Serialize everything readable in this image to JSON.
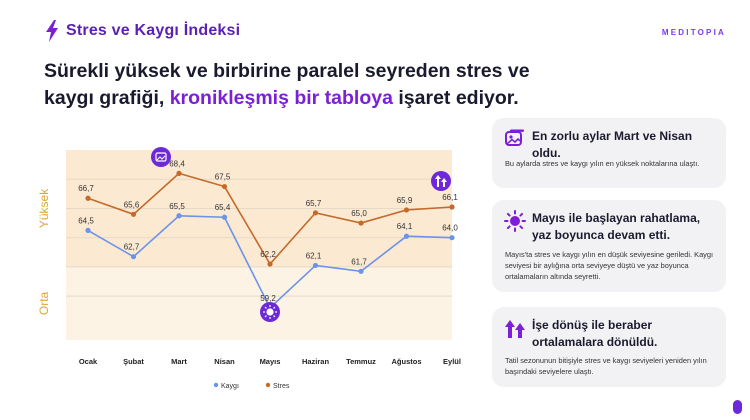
{
  "header": {
    "title": "Stres ve Kaygı İndeksi",
    "logo": "MEDITOPIA"
  },
  "headline": {
    "part1": "Sürekli yüksek ve birbirine paralel seyreden stres ve kaygı grafiği, ",
    "highlight": "kronikleşmiş bir tabloya",
    "part2": " işaret ediyor."
  },
  "colors": {
    "accent": "#7c1fd6",
    "kaygi": "#6b93e8",
    "stres": "#c46a2a",
    "band_high": "#fbe9d2",
    "band_mid": "#fdf3e4"
  },
  "chart_data": {
    "type": "line",
    "categories": [
      "Ocak",
      "Şubat",
      "Mart",
      "Nisan",
      "Mayıs",
      "Haziran",
      "Temmuz",
      "Ağustos",
      "Eylül"
    ],
    "series": [
      {
        "name": "Kaygı",
        "values": [
          64.5,
          62.7,
          65.5,
          65.4,
          59.2,
          62.1,
          61.7,
          64.1,
          64.0
        ],
        "labels": [
          "64,5",
          "62,7",
          "65,5",
          "65,4",
          "59,2",
          "62,1",
          "61,7",
          "64,1",
          "64,0"
        ]
      },
      {
        "name": "Stres",
        "values": [
          66.7,
          65.6,
          68.4,
          67.5,
          62.2,
          65.7,
          65.0,
          65.9,
          66.1
        ],
        "labels": [
          "66,7",
          "65,6",
          "68,4",
          "67,5",
          "62,2",
          "65,7",
          "65,0",
          "65,9",
          "66,1"
        ]
      }
    ],
    "band_labels": {
      "high": "Yüksek",
      "mid": "Orta"
    },
    "legend_position": "bottom",
    "grid": true,
    "icons": [
      {
        "name": "gallery-icon",
        "category": "Mart"
      },
      {
        "name": "sun-icon",
        "category": "Mayıs"
      },
      {
        "name": "rising-arrows-icon",
        "category": "Eylül"
      }
    ]
  },
  "cards": [
    {
      "icon": "gallery-icon",
      "title": "En zorlu aylar Mart ve Nisan oldu.",
      "body": "Bu aylarda stres ve kaygı yılın en yüksek noktalarına ulaştı."
    },
    {
      "icon": "sun-icon",
      "title": "Mayıs ile başlayan rahatlama, yaz boyunca devam etti.",
      "body": "Mayıs'ta stres ve kaygı yılın en düşük seviyesine geriledi. Kaygı seviyesi bir aylığına orta seviyeye düştü ve yaz boyunca ortalamaların altında seyretti."
    },
    {
      "icon": "rising-arrows-icon",
      "title": "İşe dönüş ile beraber ortalamalara dönüldü.",
      "body": "Tatil sezonunun bitişiyle stres ve kaygı seviyeleri yeniden yılın başındaki seviyelere ulaştı."
    }
  ]
}
